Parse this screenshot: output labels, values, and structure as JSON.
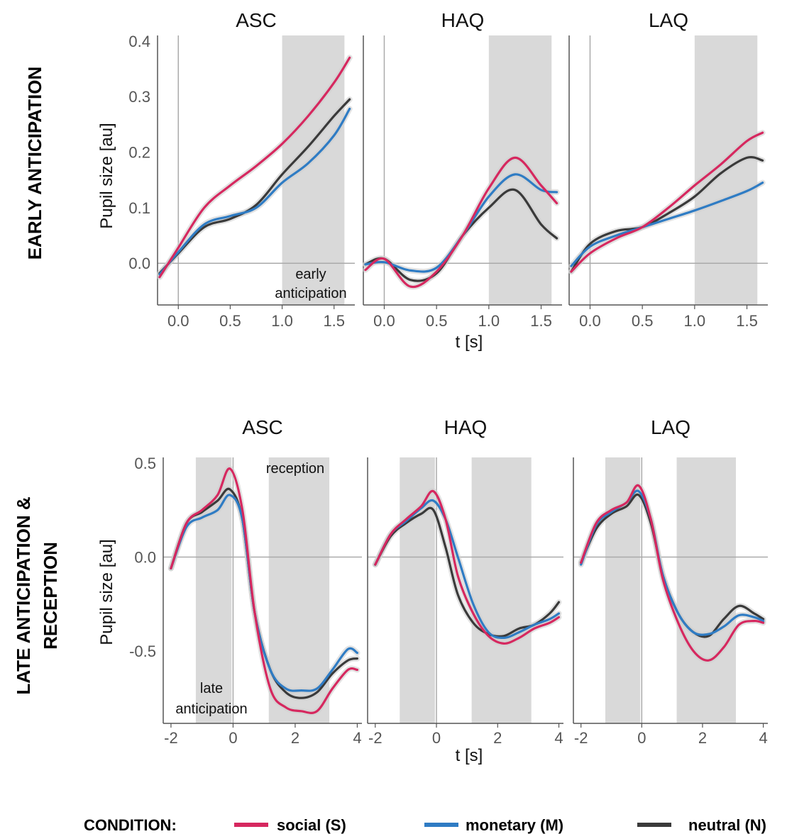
{
  "colors": {
    "social": "#D6285F",
    "monetary": "#2F7CC4",
    "neutral": "#3A3A3A",
    "window": "#D9D9D9",
    "axis": "#555555",
    "ref_line": "#AAAAAA"
  },
  "legend": {
    "title": "CONDITION:",
    "items": [
      {
        "key": "social",
        "label": "social (S)"
      },
      {
        "key": "monetary",
        "label": "monetary (M)"
      },
      {
        "key": "neutral",
        "label": "neutral (N)"
      }
    ]
  },
  "chart_data": [
    {
      "type": "line",
      "row_label": [
        "EARLY ANTICIPATION"
      ],
      "xlabel": "t [s]",
      "ylabel": "Pupil size [au]",
      "xlim": [
        -0.2,
        1.7
      ],
      "ylim": [
        -0.075,
        0.41
      ],
      "x_ticks": [
        0.0,
        0.5,
        1.0,
        1.5
      ],
      "x_tick_labels": [
        "0.0",
        "0.5",
        "1.0",
        "1.5"
      ],
      "y_ticks": [
        0.0,
        0.1,
        0.2,
        0.3,
        0.4
      ],
      "y_tick_labels": [
        "0.0",
        "0.1",
        "0.2",
        "0.3",
        "0.4"
      ],
      "shaded_window": [
        1.0,
        1.6
      ],
      "zero_line": true,
      "vline_x": 0,
      "annotations": [
        {
          "panel": "ASC",
          "text": [
            "early",
            "anticipation"
          ]
        }
      ],
      "panels": [
        {
          "title": "ASC",
          "x": [
            -0.18,
            0.0,
            0.25,
            0.5,
            0.75,
            1.0,
            1.25,
            1.5,
            1.65
          ],
          "series": [
            {
              "key": "social",
              "values": [
                -0.025,
                0.028,
                0.1,
                0.14,
                0.175,
                0.215,
                0.265,
                0.325,
                0.37
              ]
            },
            {
              "key": "monetary",
              "values": [
                -0.02,
                0.02,
                0.07,
                0.085,
                0.1,
                0.145,
                0.18,
                0.23,
                0.278
              ]
            },
            {
              "key": "neutral",
              "values": [
                -0.018,
                0.018,
                0.065,
                0.08,
                0.105,
                0.16,
                0.21,
                0.265,
                0.295
              ]
            }
          ]
        },
        {
          "title": "HAQ",
          "x": [
            -0.18,
            0.0,
            0.25,
            0.5,
            0.75,
            1.0,
            1.25,
            1.5,
            1.65
          ],
          "series": [
            {
              "key": "social",
              "values": [
                -0.012,
                0.008,
                -0.042,
                -0.015,
                0.05,
                0.135,
                0.19,
                0.14,
                0.108
              ]
            },
            {
              "key": "monetary",
              "values": [
                -0.002,
                0.002,
                -0.013,
                -0.008,
                0.05,
                0.12,
                0.16,
                0.132,
                0.128
              ]
            },
            {
              "key": "neutral",
              "values": [
                -0.002,
                0.008,
                -0.03,
                -0.018,
                0.05,
                0.1,
                0.132,
                0.07,
                0.045
              ]
            }
          ]
        },
        {
          "title": "LAQ",
          "x": [
            -0.18,
            0.0,
            0.25,
            0.5,
            0.75,
            1.0,
            1.25,
            1.5,
            1.65
          ],
          "series": [
            {
              "key": "social",
              "values": [
                -0.015,
                0.018,
                0.045,
                0.065,
                0.1,
                0.14,
                0.178,
                0.22,
                0.235
              ]
            },
            {
              "key": "monetary",
              "values": [
                -0.005,
                0.03,
                0.05,
                0.065,
                0.08,
                0.095,
                0.112,
                0.13,
                0.145
              ]
            },
            {
              "key": "neutral",
              "values": [
                -0.015,
                0.035,
                0.058,
                0.065,
                0.09,
                0.12,
                0.162,
                0.19,
                0.185
              ]
            }
          ]
        }
      ]
    },
    {
      "type": "line",
      "row_label": [
        "LATE ANTICIPATION &",
        "RECEPTION"
      ],
      "xlabel": "t [s]",
      "ylabel": "Pupil size [au]",
      "xlim": [
        -2.25,
        4.15
      ],
      "ylim": [
        -0.885,
        0.53
      ],
      "x_ticks": [
        -2,
        0,
        2,
        4
      ],
      "x_tick_labels": [
        "-2",
        "0",
        "2",
        "4"
      ],
      "y_ticks": [
        0.5,
        0.0,
        -0.5
      ],
      "y_tick_labels": [
        "0.5",
        "0.0",
        "-0.5"
      ],
      "shaded_windows": [
        [
          -1.2,
          -0.05
        ],
        [
          1.15,
          3.1
        ]
      ],
      "zero_line": true,
      "vline_x": 0,
      "annotations": [
        {
          "panel": "ASC",
          "text": [
            "reception"
          ]
        },
        {
          "panel": "ASC",
          "text": [
            "late",
            "anticipation"
          ]
        }
      ],
      "panels": [
        {
          "title": "ASC",
          "x": [
            -2.0,
            -1.5,
            -1.0,
            -0.5,
            -0.1,
            0.3,
            0.7,
            1.2,
            1.7,
            2.2,
            2.7,
            3.2,
            3.7,
            4.0
          ],
          "series": [
            {
              "key": "social",
              "values": [
                -0.06,
                0.18,
                0.25,
                0.33,
                0.47,
                0.25,
                -0.3,
                -0.7,
                -0.8,
                -0.82,
                -0.82,
                -0.7,
                -0.6,
                -0.6
              ]
            },
            {
              "key": "monetary",
              "values": [
                -0.06,
                0.16,
                0.21,
                0.25,
                0.33,
                0.2,
                -0.3,
                -0.6,
                -0.7,
                -0.71,
                -0.7,
                -0.6,
                -0.49,
                -0.51
              ]
            },
            {
              "key": "neutral",
              "values": [
                -0.06,
                0.18,
                0.24,
                0.3,
                0.36,
                0.2,
                -0.3,
                -0.6,
                -0.72,
                -0.75,
                -0.72,
                -0.62,
                -0.55,
                -0.54
              ]
            }
          ]
        },
        {
          "title": "HAQ",
          "x": [
            -2.0,
            -1.5,
            -1.0,
            -0.5,
            -0.1,
            0.3,
            0.7,
            1.2,
            1.7,
            2.2,
            2.7,
            3.2,
            3.7,
            4.0
          ],
          "series": [
            {
              "key": "social",
              "values": [
                -0.04,
                0.12,
                0.2,
                0.27,
                0.35,
                0.2,
                -0.1,
                -0.3,
                -0.42,
                -0.46,
                -0.43,
                -0.38,
                -0.35,
                -0.32
              ]
            },
            {
              "key": "monetary",
              "values": [
                -0.04,
                0.12,
                0.19,
                0.26,
                0.3,
                0.2,
                0.0,
                -0.25,
                -0.4,
                -0.43,
                -0.4,
                -0.36,
                -0.33,
                -0.3
              ]
            },
            {
              "key": "neutral",
              "values": [
                -0.04,
                0.11,
                0.18,
                0.23,
                0.25,
                0.05,
                -0.2,
                -0.35,
                -0.41,
                -0.42,
                -0.38,
                -0.36,
                -0.3,
                -0.24
              ]
            }
          ]
        },
        {
          "title": "LAQ",
          "x": [
            -2.0,
            -1.5,
            -1.0,
            -0.5,
            -0.1,
            0.3,
            0.7,
            1.2,
            1.7,
            2.2,
            2.7,
            3.2,
            3.7,
            4.0
          ],
          "series": [
            {
              "key": "social",
              "values": [
                -0.03,
                0.18,
                0.25,
                0.29,
                0.38,
                0.2,
                -0.12,
                -0.35,
                -0.5,
                -0.55,
                -0.48,
                -0.36,
                -0.34,
                -0.35
              ]
            },
            {
              "key": "monetary",
              "values": [
                -0.04,
                0.17,
                0.24,
                0.29,
                0.35,
                0.2,
                -0.1,
                -0.3,
                -0.4,
                -0.41,
                -0.37,
                -0.31,
                -0.32,
                -0.34
              ]
            },
            {
              "key": "neutral",
              "values": [
                -0.03,
                0.15,
                0.23,
                0.27,
                0.33,
                0.18,
                -0.1,
                -0.3,
                -0.4,
                -0.42,
                -0.33,
                -0.26,
                -0.3,
                -0.33
              ]
            }
          ]
        }
      ]
    }
  ]
}
